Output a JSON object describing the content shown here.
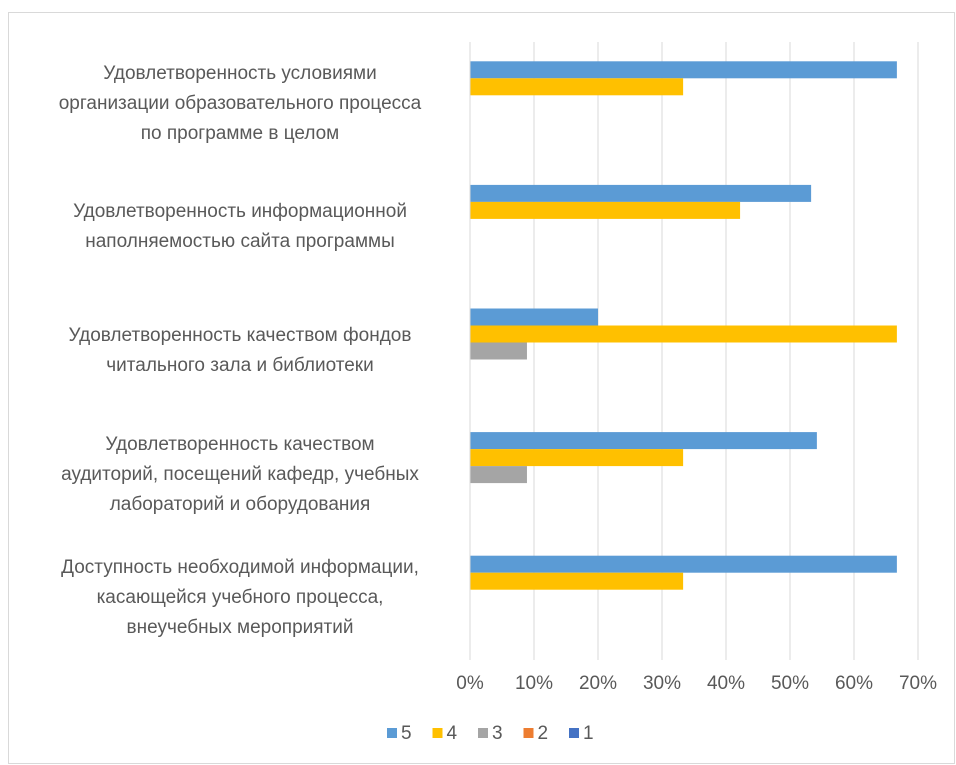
{
  "chart_data": {
    "type": "bar",
    "orientation": "horizontal",
    "categories": [
      "Удовлетворенность условиями\nорганизации образовательного процесса\nпо программе в целом",
      "Удовлетворенность информационной\nнаполняемостью сайта программы",
      "Удовлетворенность качеством фондов\nчитального зала и библиотеки",
      "Удовлетворенность качеством\nаудиторий, посещений кафедр, учебных\nлабораторий и оборудования",
      "Доступность необходимой информации,\nкасающейся учебного процесса,\nвнеучебных мероприятий"
    ],
    "series": [
      {
        "name": "5",
        "color": "#5b9bd5",
        "values": [
          66.7,
          53.3,
          20,
          54.2,
          66.7
        ]
      },
      {
        "name": "4",
        "color": "#ffc000",
        "values": [
          33.3,
          42.2,
          66.7,
          33.3,
          33.3
        ]
      },
      {
        "name": "3",
        "color": "#a5a5a5",
        "values": [
          0,
          0,
          8.9,
          8.9,
          0
        ]
      },
      {
        "name": "2",
        "color": "#ed7d31",
        "values": [
          0,
          0,
          0,
          0,
          0
        ]
      },
      {
        "name": "1",
        "color": "#4472c4",
        "values": [
          0,
          0,
          0,
          0,
          0
        ]
      }
    ],
    "xlim": [
      0,
      70
    ],
    "xticks": [
      {
        "value": 0,
        "label": "0%"
      },
      {
        "value": 10,
        "label": "10%"
      },
      {
        "value": 20,
        "label": "20%"
      },
      {
        "value": 30,
        "label": "30%"
      },
      {
        "value": 40,
        "label": "40%"
      },
      {
        "value": 50,
        "label": "50%"
      },
      {
        "value": 60,
        "label": "60%"
      },
      {
        "value": 70,
        "label": "70%"
      }
    ],
    "grid": true,
    "legend": "bottom"
  }
}
